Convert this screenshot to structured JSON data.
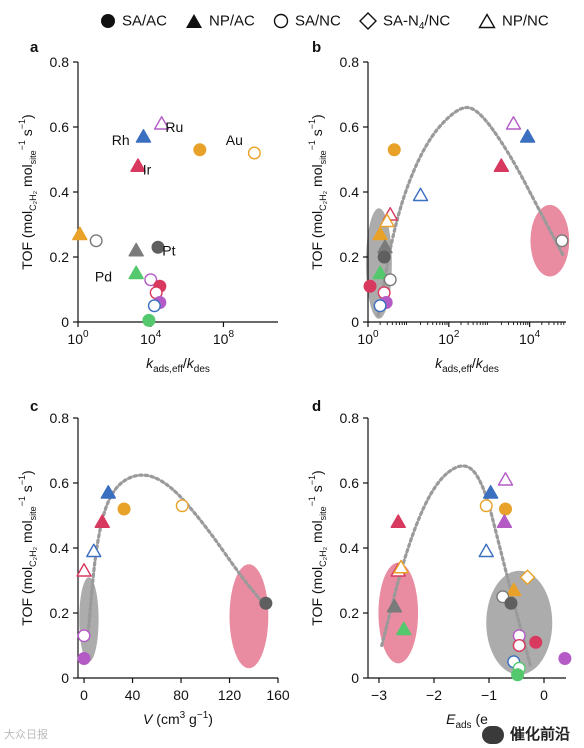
{
  "legend": [
    {
      "label": "SA/AC",
      "marker": "circle",
      "filled": true
    },
    {
      "label": "NP/AC",
      "marker": "triangle",
      "filled": true
    },
    {
      "label": "SA/NC",
      "marker": "circle",
      "filled": false
    },
    {
      "label": "SA-N",
      "sub": "4",
      "suffix": "/NC",
      "marker": "diamond",
      "filled": false
    },
    {
      "label": "NP/NC",
      "marker": "triangle",
      "filled": false
    }
  ],
  "colors": {
    "orange": "#e8a22a",
    "blue": "#3b6fbf",
    "purple": "#b45bc6",
    "red": "#d8395e",
    "grey": "#7b7b7b",
    "dgrey": "#5f5f5f",
    "green": "#54c86d",
    "pink": "#e57b96",
    "pinkFill": "#e8859c",
    "greyFill": "#a8a8a8",
    "curve": "#9a9a9a"
  },
  "chart_data": [
    {
      "panel": "a",
      "type": "scatter",
      "xscale": "log10",
      "xlim": [
        0,
        11
      ],
      "ylim": [
        0,
        0.8
      ],
      "yticks": [
        "0",
        "0.2",
        "0.4",
        "0.6",
        "0.8"
      ],
      "xticks": [
        {
          "base": "10",
          "exp": "0",
          "v": 0
        },
        {
          "base": "10",
          "exp": "4",
          "v": 4
        },
        {
          "base": "10",
          "exp": "8",
          "v": 8
        }
      ],
      "ylabel": "TOF (mol",
      "ylabel_sub1": "C₂H₂",
      "ylabel_mid": " mol",
      "ylabel_sub2": "site",
      "ylabel_sup1": "−1",
      "ylabel_mid2": " s",
      "ylabel_sup2": "−1",
      "ylabel_end": ")",
      "xlabel": "k",
      "xlabel_sub": "ads,eff",
      "xlabel_mid": "/k",
      "xlabel_sub2": "des",
      "points": [
        {
          "x": 0.1,
          "y": 0.27,
          "m": "tri",
          "c": "orange",
          "f": 1
        },
        {
          "x": 1.0,
          "y": 0.25,
          "m": "circ",
          "c": "grey",
          "f": 0
        },
        {
          "x": 3.2,
          "y": 0.22,
          "m": "tri",
          "c": "grey",
          "f": 1,
          "label": ""
        },
        {
          "x": 4.4,
          "y": 0.23,
          "m": "circ",
          "c": "dgrey",
          "f": 1
        },
        {
          "x": 3.2,
          "y": 0.15,
          "m": "tri",
          "c": "green",
          "f": 1
        },
        {
          "x": 3.6,
          "y": 0.57,
          "m": "tri",
          "c": "blue",
          "f": 1
        },
        {
          "x": 4.6,
          "y": 0.61,
          "m": "tri",
          "c": "purple",
          "f": 0
        },
        {
          "x": 3.3,
          "y": 0.48,
          "m": "tri",
          "c": "red",
          "f": 1
        },
        {
          "x": 6.7,
          "y": 0.53,
          "m": "circ",
          "c": "orange",
          "f": 1
        },
        {
          "x": 9.7,
          "y": 0.52,
          "m": "circ",
          "c": "orange",
          "f": 0
        },
        {
          "x": 4.0,
          "y": 0.13,
          "m": "circ",
          "c": "purple",
          "f": 0
        },
        {
          "x": 4.5,
          "y": 0.11,
          "m": "circ",
          "c": "red",
          "f": 1
        },
        {
          "x": 4.3,
          "y": 0.09,
          "m": "circ",
          "c": "red",
          "f": 0
        },
        {
          "x": 4.5,
          "y": 0.06,
          "m": "circ",
          "c": "purple",
          "f": 1
        },
        {
          "x": 4.2,
          "y": 0.05,
          "m": "circ",
          "c": "blue",
          "f": 0
        },
        {
          "x": 3.9,
          "y": 0.005,
          "m": "circ",
          "c": "green",
          "f": 1
        }
      ],
      "annotations": [
        {
          "text": "Rh",
          "x": 2.35,
          "y": 0.56
        },
        {
          "text": "Ru",
          "x": 5.3,
          "y": 0.6
        },
        {
          "text": "Ir",
          "x": 3.8,
          "y": 0.47
        },
        {
          "text": "Au",
          "x": 8.6,
          "y": 0.56
        },
        {
          "text": "Pt",
          "x": 5.0,
          "y": 0.22
        },
        {
          "text": "Pd",
          "x": 1.4,
          "y": 0.14
        }
      ]
    },
    {
      "panel": "b",
      "type": "scatter",
      "xscale": "log10",
      "xlim": [
        0,
        4.9
      ],
      "ylim": [
        0,
        0.8
      ],
      "yticks": [
        "0",
        "0.2",
        "0.4",
        "0.6",
        "0.8"
      ],
      "xticks": [
        {
          "base": "10",
          "exp": "0",
          "v": 0
        },
        {
          "base": "10",
          "exp": "2",
          "v": 2
        },
        {
          "base": "10",
          "exp": "4",
          "v": 4
        }
      ],
      "ylabel": "TOF (mol",
      "ylabel_sub1": "C₂H₂",
      "ylabel_mid": " mol",
      "ylabel_sub2": "site",
      "ylabel_sup1": "−1",
      "ylabel_mid2": " s",
      "ylabel_sup2": "−1",
      "ylabel_end": ")",
      "xlabel": "k",
      "xlabel_sub": "ads,eff",
      "xlabel_mid": "/k",
      "xlabel_sub2": "des",
      "curve": [
        [
          0.25,
          0.02
        ],
        [
          0.7,
          0.33
        ],
        [
          1.4,
          0.55
        ],
        [
          2.2,
          0.66
        ],
        [
          2.7,
          0.66
        ],
        [
          3.5,
          0.52
        ],
        [
          4.3,
          0.33
        ],
        [
          4.85,
          0.2
        ]
      ],
      "ellipses": [
        {
          "cx": 0.27,
          "cy": 0.18,
          "rx": 0.32,
          "ry": 0.17,
          "c": "greyFill"
        },
        {
          "cx": 4.5,
          "cy": 0.25,
          "rx": 0.48,
          "ry": 0.11,
          "c": "pinkFill"
        }
      ],
      "points": [
        {
          "x": 0.05,
          "y": 0.11,
          "m": "circ",
          "c": "red",
          "f": 1
        },
        {
          "x": 0.65,
          "y": 0.53,
          "m": "circ",
          "c": "orange",
          "f": 1
        },
        {
          "x": 0.55,
          "y": 0.33,
          "m": "tri",
          "c": "red",
          "f": 0
        },
        {
          "x": 0.47,
          "y": 0.31,
          "m": "tri",
          "c": "orange",
          "f": 0
        },
        {
          "x": 1.3,
          "y": 0.39,
          "m": "tri",
          "c": "blue",
          "f": 0
        },
        {
          "x": 0.3,
          "y": 0.27,
          "m": "tri",
          "c": "orange",
          "f": 1
        },
        {
          "x": 0.42,
          "y": 0.23,
          "m": "tri",
          "c": "grey",
          "f": 1
        },
        {
          "x": 0.4,
          "y": 0.2,
          "m": "circ",
          "c": "dgrey",
          "f": 1
        },
        {
          "x": 0.3,
          "y": 0.15,
          "m": "tri",
          "c": "green",
          "f": 1
        },
        {
          "x": 0.55,
          "y": 0.13,
          "m": "circ",
          "c": "grey",
          "f": 0
        },
        {
          "x": 0.4,
          "y": 0.09,
          "m": "circ",
          "c": "red",
          "f": 0
        },
        {
          "x": 0.45,
          "y": 0.06,
          "m": "circ",
          "c": "purple",
          "f": 1
        },
        {
          "x": 0.3,
          "y": 0.05,
          "m": "circ",
          "c": "blue",
          "f": 0
        },
        {
          "x": 3.3,
          "y": 0.48,
          "m": "tri",
          "c": "red",
          "f": 1
        },
        {
          "x": 3.6,
          "y": 0.61,
          "m": "tri",
          "c": "purple",
          "f": 0
        },
        {
          "x": 3.95,
          "y": 0.57,
          "m": "tri",
          "c": "blue",
          "f": 1
        },
        {
          "x": 4.8,
          "y": 0.25,
          "m": "circ",
          "c": "grey",
          "f": 0
        }
      ]
    },
    {
      "panel": "c",
      "type": "scatter",
      "xscale": "linear",
      "xlim": [
        -5,
        160
      ],
      "ylim": [
        0,
        0.8
      ],
      "yticks": [
        "0",
        "0.2",
        "0.4",
        "0.6",
        "0.8"
      ],
      "xticks": [
        {
          "t": "0",
          "v": 0
        },
        {
          "t": "40",
          "v": 40
        },
        {
          "t": "80",
          "v": 80
        },
        {
          "t": "120",
          "v": 120
        },
        {
          "t": "160",
          "v": 160
        }
      ],
      "ylabel": "TOF (mol",
      "ylabel_sub1": "C₂H₂",
      "ylabel_mid": " mol",
      "ylabel_sub2": "site",
      "ylabel_sup1": "−1",
      "ylabel_mid2": " s",
      "ylabel_sup2": "−1",
      "ylabel_end": ")",
      "xlabel": "V",
      "xlabel_rest": " (cm",
      "xlabel_sup": "3",
      "xlabel_end": " g",
      "xlabel_sup2": "−1",
      "xlabel_close": ")",
      "curve": [
        [
          3,
          0.12
        ],
        [
          10,
          0.42
        ],
        [
          22,
          0.58
        ],
        [
          45,
          0.635
        ],
        [
          70,
          0.6
        ],
        [
          100,
          0.47
        ],
        [
          130,
          0.31
        ],
        [
          150,
          0.22
        ]
      ],
      "ellipses": [
        {
          "cx": 4,
          "cy": 0.18,
          "rx": 8,
          "ry": 0.13,
          "c": "greyFill"
        },
        {
          "cx": 136,
          "cy": 0.19,
          "rx": 16,
          "ry": 0.16,
          "c": "pinkFill"
        }
      ],
      "points": [
        {
          "x": 0,
          "y": 0.33,
          "m": "tri",
          "c": "red",
          "f": 0
        },
        {
          "x": 8,
          "y": 0.39,
          "m": "tri",
          "c": "blue",
          "f": 0
        },
        {
          "x": 15,
          "y": 0.48,
          "m": "tri",
          "c": "red",
          "f": 1
        },
        {
          "x": 20,
          "y": 0.57,
          "m": "tri",
          "c": "blue",
          "f": 1
        },
        {
          "x": 33,
          "y": 0.52,
          "m": "circ",
          "c": "orange",
          "f": 1
        },
        {
          "x": 81,
          "y": 0.53,
          "m": "circ",
          "c": "orange",
          "f": 0
        },
        {
          "x": 0,
          "y": 0.13,
          "m": "circ",
          "c": "purple",
          "f": 0
        },
        {
          "x": 0,
          "y": 0.06,
          "m": "circ",
          "c": "purple",
          "f": 1
        },
        {
          "x": 150,
          "y": 0.23,
          "m": "circ",
          "c": "dgrey",
          "f": 1
        }
      ]
    },
    {
      "panel": "d",
      "type": "scatter",
      "xscale": "linear",
      "xlim": [
        -3.2,
        0.4
      ],
      "ylim": [
        0,
        0.8
      ],
      "yticks": [
        "0",
        "0.2",
        "0.4",
        "0.6",
        "0.8"
      ],
      "xticks": [
        {
          "t": "−3",
          "v": -3
        },
        {
          "t": "−2",
          "v": -2
        },
        {
          "t": "−1",
          "v": -1
        },
        {
          "t": "0",
          "v": 0
        }
      ],
      "ylabel": "TOF (mol",
      "ylabel_sub1": "C₂H₂",
      "ylabel_mid": " mol",
      "ylabel_sub2": "site",
      "ylabel_sup1": "−1",
      "ylabel_mid2": " s",
      "ylabel_sup2": "−1",
      "ylabel_end": ")",
      "xlabel": "E",
      "xlabel_sub": "ads",
      "xlabel_rest": " (e",
      "curve": [
        [
          -2.95,
          0.1
        ],
        [
          -2.5,
          0.4
        ],
        [
          -2.0,
          0.6
        ],
        [
          -1.45,
          0.67
        ],
        [
          -1.1,
          0.6
        ],
        [
          -0.8,
          0.4
        ],
        [
          -0.5,
          0.2
        ],
        [
          -0.25,
          0.04
        ]
      ],
      "ellipses": [
        {
          "cx": -2.65,
          "cy": 0.2,
          "rx": 0.36,
          "ry": 0.155,
          "c": "pinkFill"
        },
        {
          "cx": -0.45,
          "cy": 0.17,
          "rx": 0.6,
          "ry": 0.16,
          "c": "greyFill"
        }
      ],
      "points": [
        {
          "x": -2.65,
          "y": 0.48,
          "m": "tri",
          "c": "red",
          "f": 1
        },
        {
          "x": -2.65,
          "y": 0.33,
          "m": "tri",
          "c": "red",
          "f": 0
        },
        {
          "x": -2.6,
          "y": 0.34,
          "m": "tri",
          "c": "orange",
          "f": 0
        },
        {
          "x": -2.72,
          "y": 0.22,
          "m": "tri",
          "c": "grey",
          "f": 1
        },
        {
          "x": -2.55,
          "y": 0.15,
          "m": "tri",
          "c": "green",
          "f": 1
        },
        {
          "x": -1.05,
          "y": 0.39,
          "m": "tri",
          "c": "blue",
          "f": 0
        },
        {
          "x": -1.05,
          "y": 0.53,
          "m": "circ",
          "c": "orange",
          "f": 0
        },
        {
          "x": -0.7,
          "y": 0.61,
          "m": "tri",
          "c": "purple",
          "f": 0
        },
        {
          "x": -0.97,
          "y": 0.57,
          "m": "tri",
          "c": "blue",
          "f": 1
        },
        {
          "x": -0.7,
          "y": 0.52,
          "m": "circ",
          "c": "orange",
          "f": 1
        },
        {
          "x": -0.72,
          "y": 0.48,
          "m": "tri",
          "c": "purple",
          "f": 1
        },
        {
          "x": -0.55,
          "y": 0.27,
          "m": "tri",
          "c": "orange",
          "f": 1
        },
        {
          "x": -0.75,
          "y": 0.25,
          "m": "circ",
          "c": "grey",
          "f": 0
        },
        {
          "x": -0.6,
          "y": 0.23,
          "m": "circ",
          "c": "dgrey",
          "f": 1
        },
        {
          "x": -0.3,
          "y": 0.31,
          "m": "diam",
          "c": "orange",
          "f": 0
        },
        {
          "x": -0.45,
          "y": 0.13,
          "m": "circ",
          "c": "purple",
          "f": 0
        },
        {
          "x": -0.45,
          "y": 0.1,
          "m": "circ",
          "c": "red",
          "f": 0
        },
        {
          "x": -0.15,
          "y": 0.11,
          "m": "circ",
          "c": "red",
          "f": 1
        },
        {
          "x": -0.55,
          "y": 0.05,
          "m": "circ",
          "c": "blue",
          "f": 0
        },
        {
          "x": -0.45,
          "y": 0.03,
          "m": "circ",
          "c": "green",
          "f": 0
        },
        {
          "x": -0.48,
          "y": 0.01,
          "m": "circ",
          "c": "green",
          "f": 1
        },
        {
          "x": 0.38,
          "y": 0.06,
          "m": "circ",
          "c": "purple",
          "f": 1
        }
      ]
    }
  ],
  "watermark": {
    "left": "大众日报",
    "right": "催化前沿"
  }
}
